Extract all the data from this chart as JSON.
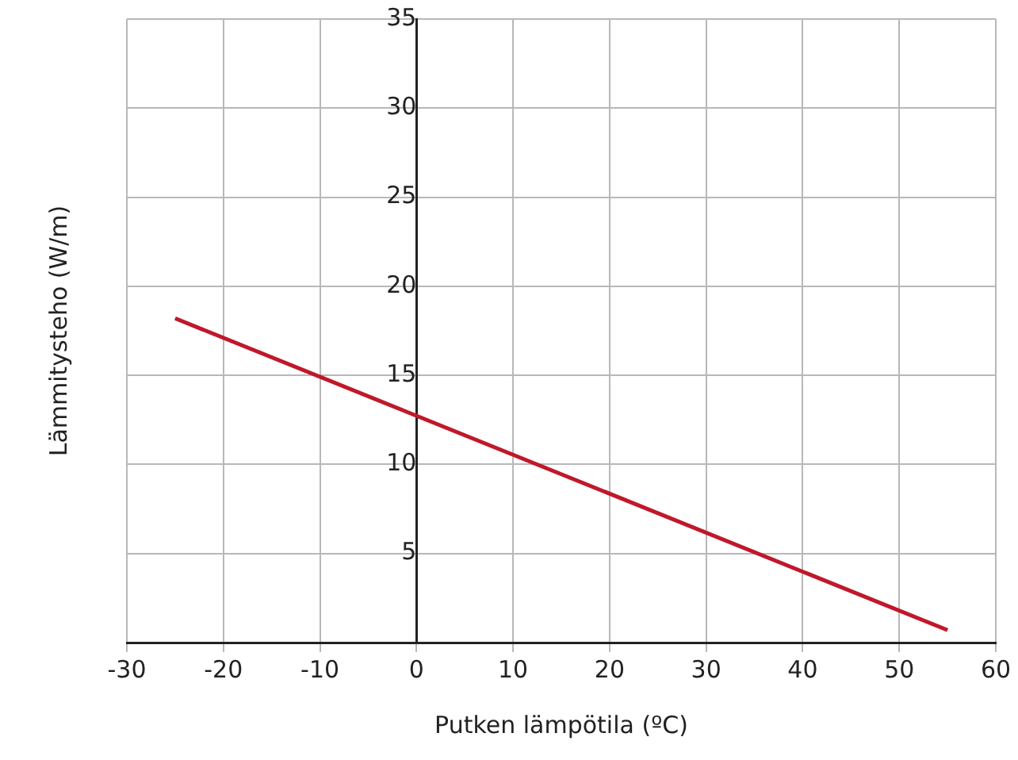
{
  "chart_data": {
    "type": "line",
    "xlabel": "Putken lämpötila (ºC)",
    "ylabel": "Lämmitysteho (W/m)",
    "x": [
      -25,
      55
    ],
    "series": [
      {
        "color": "#c0182b",
        "values": [
          18.2,
          0.7
        ]
      }
    ],
    "xlim": [
      -30,
      60
    ],
    "xticks": [
      -30,
      -20,
      -10,
      0,
      10,
      20,
      30,
      40,
      50,
      60
    ],
    "ylim": [
      0,
      35
    ],
    "yticks": [
      5,
      10,
      15,
      20,
      25,
      30,
      35
    ],
    "grid": true,
    "legend": false,
    "marker": "none",
    "line_style": "solid"
  }
}
